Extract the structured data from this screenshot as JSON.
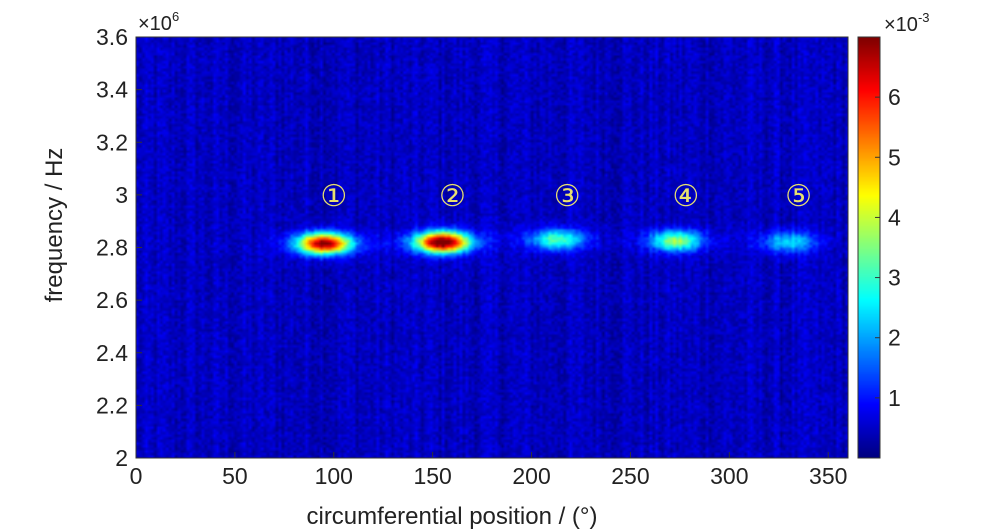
{
  "chart_data": {
    "type": "heatmap",
    "title": "",
    "xlabel": "circumferential position / (°)",
    "ylabel": "frequency / Hz",
    "xlim": [
      0,
      360
    ],
    "ylim": [
      2000000,
      3600000
    ],
    "x_ticks": [
      "0",
      "50",
      "100",
      "150",
      "200",
      "250",
      "300",
      "350"
    ],
    "x_tick_values": [
      0,
      50,
      100,
      150,
      200,
      250,
      300,
      350
    ],
    "y_ticks": [
      "2",
      "2.2",
      "2.4",
      "2.6",
      "2.8",
      "3",
      "3.2",
      "3.4",
      "3.6"
    ],
    "y_tick_values": [
      2000000,
      2200000,
      2400000,
      2600000,
      2800000,
      3000000,
      3200000,
      3400000,
      3600000
    ],
    "y_multiplier": {
      "base": "×10",
      "exponent": "6"
    },
    "colorbar": {
      "colormap": "jet",
      "min": 0,
      "max": 0.007,
      "ticks": [
        "1",
        "2",
        "3",
        "4",
        "5",
        "6"
      ],
      "tick_values": [
        0.001,
        0.002,
        0.003,
        0.004,
        0.005,
        0.006
      ],
      "multiplier": {
        "base": "×10",
        "exponent": "-3"
      }
    },
    "background_level": 0.00045,
    "peaks": [
      {
        "label": "①",
        "x": 95,
        "y": 2815000,
        "amplitude": 0.0063
      },
      {
        "label": "②",
        "x": 155,
        "y": 2820000,
        "amplitude": 0.0068
      },
      {
        "label": "③",
        "x": 213,
        "y": 2830000,
        "amplitude": 0.0027
      },
      {
        "label": "④",
        "x": 273,
        "y": 2825000,
        "amplitude": 0.0031
      },
      {
        "label": "⑤",
        "x": 330,
        "y": 2820000,
        "amplitude": 0.0019
      }
    ],
    "label_y": 3000000
  }
}
